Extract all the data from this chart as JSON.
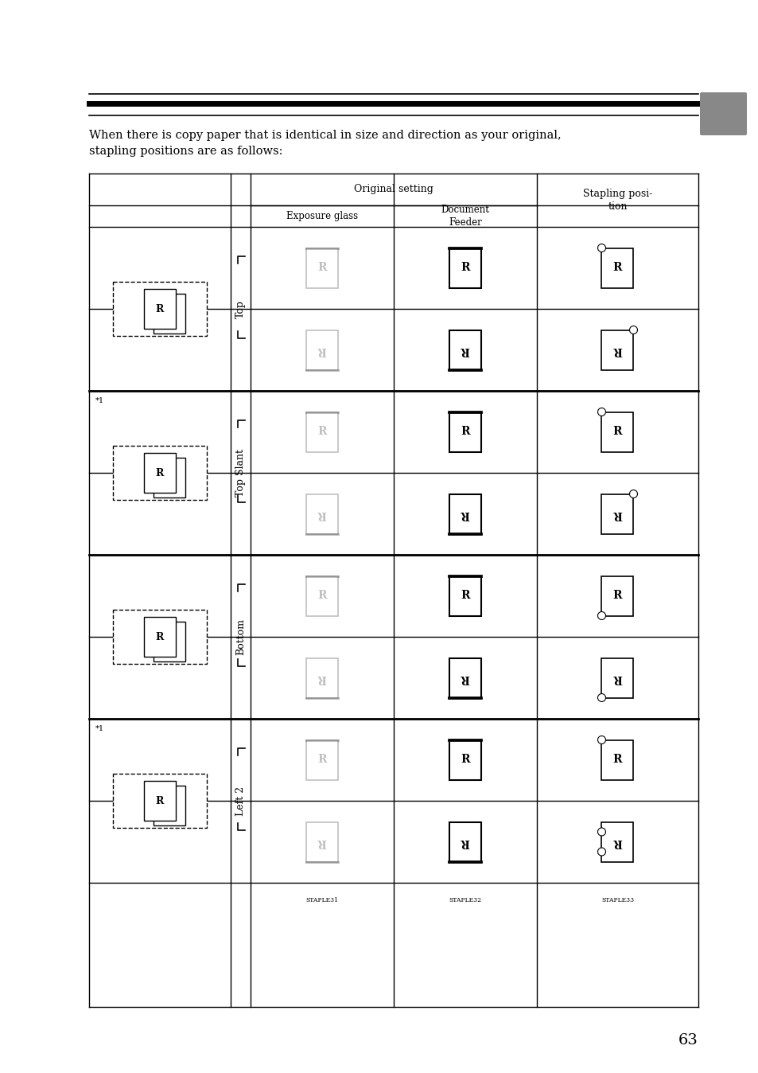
{
  "page_number": "63",
  "intro_text_line1": "When there is copy paper that is identical in size and direction as your original,",
  "intro_text_line2": "stapling positions are as follows:",
  "col_headers_orig": "Original setting",
  "col_headers_staple": "Stapling posi-\ntion",
  "sub_header_exp": "Exposure glass",
  "sub_header_doc": "Document\nFeeder",
  "section_labels": [
    "Top",
    "Top Slant",
    "Bottom",
    "Left 2"
  ],
  "footnote_labels": [
    "STAPLE31",
    "STAPLE32",
    "STAPLE33"
  ],
  "background_color": "#ffffff",
  "gray_tab_color": "#888888",
  "text_color": "#000000"
}
